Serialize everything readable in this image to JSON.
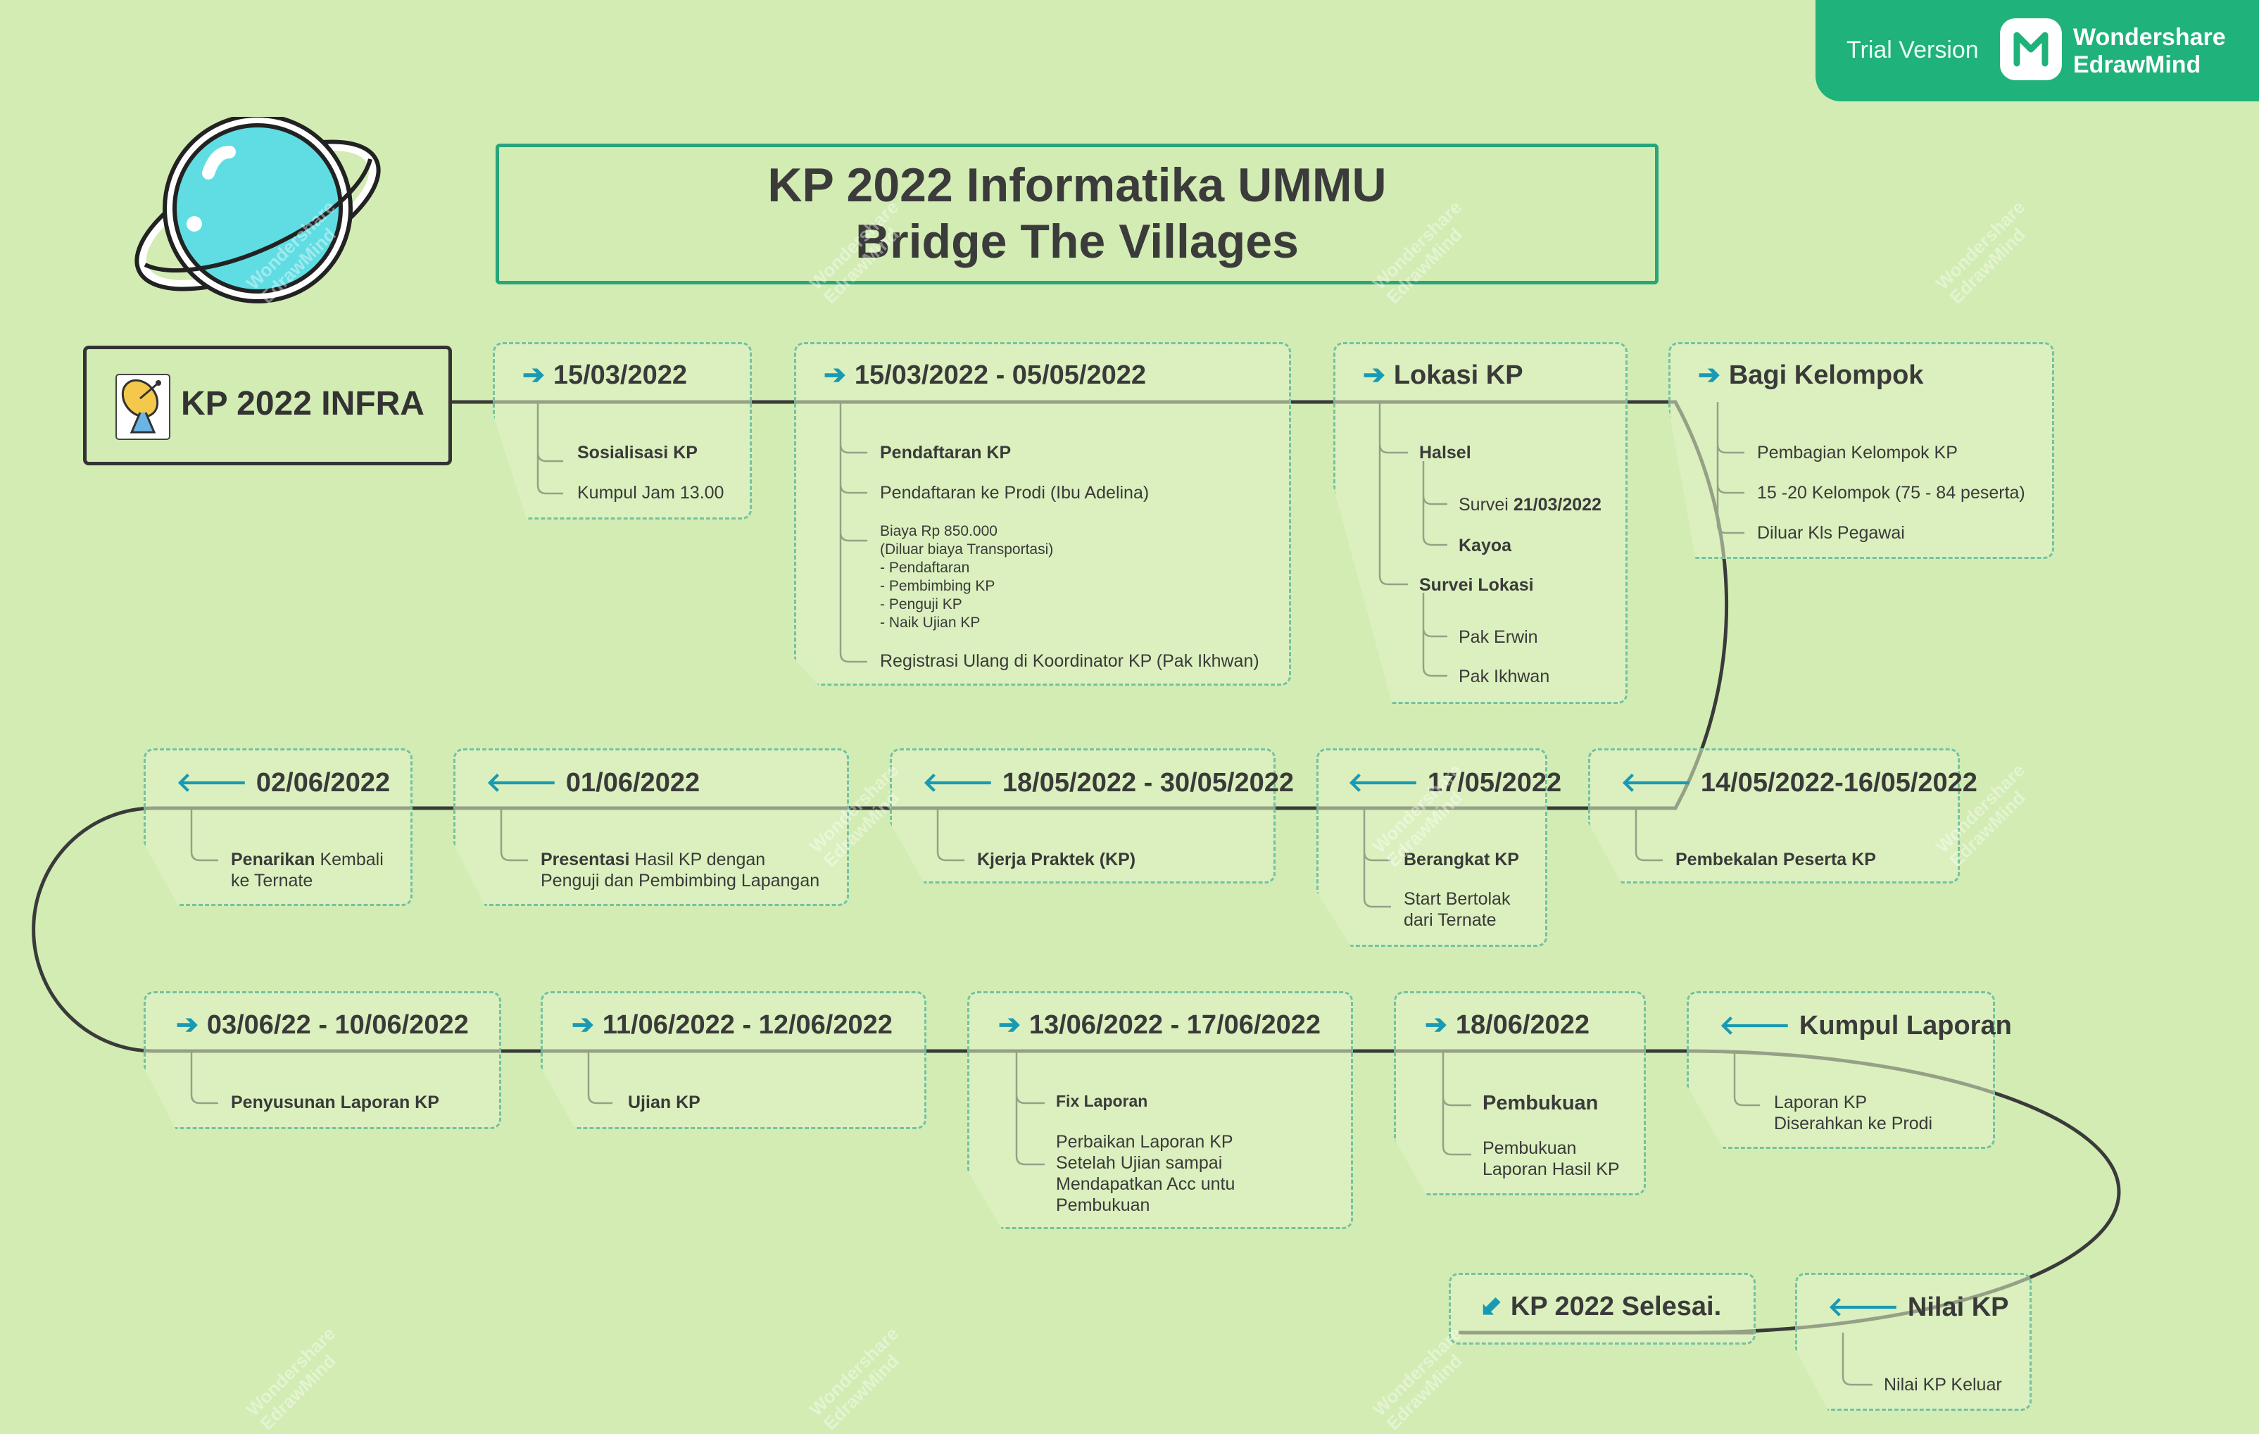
{
  "watermark": {
    "trial": "Trial Version",
    "brand_line1": "Wondershare",
    "brand_line2": "EdrawMind"
  },
  "title": {
    "line1": "KP 2022 Informatika UMMU",
    "line2": "Bridge The Villages"
  },
  "root": {
    "label": "KP 2022 INFRA"
  },
  "colors": {
    "background": "#d2ecb3",
    "accent": "#1fb27a",
    "arrow": "#1a9ab2",
    "card_border": "#74c2a0",
    "line": "#3a3a3a"
  },
  "topics": [
    {
      "arrow": "➔",
      "title": "15/03/2022",
      "items": [
        {
          "text": "Sosialisasi KP"
        },
        {
          "text": "Kumpul Jam 13.00"
        }
      ]
    },
    {
      "arrow": "➔",
      "title": "15/03/2022 - 05/05/2022",
      "items": [
        {
          "text": "Pendaftaran KP"
        },
        {
          "text": "Pendaftaran ke Prodi (Ibu Adelina)"
        },
        {
          "lines": [
            "Biaya Rp 850.000",
            "(Diluar biaya Transportasi)",
            "- Pendaftaran",
            "- Pembimbing KP",
            "- Penguji KP",
            "- Naik Ujian KP"
          ]
        },
        {
          "text": "Registrasi Ulang di Koordinator KP (Pak Ikhwan)"
        }
      ]
    },
    {
      "arrow": "➔",
      "title": "Lokasi KP",
      "items": [
        {
          "text": "Halsel"
        },
        {
          "pre": "Survei ",
          "bold": "21/03/2022"
        },
        {
          "text": "Kayoa"
        },
        {
          "text": "Survei Lokasi"
        },
        {
          "text": "Pak Erwin"
        },
        {
          "text": "Pak Ikhwan"
        }
      ]
    },
    {
      "arrow": "➔",
      "title": "Bagi Kelompok",
      "items": [
        {
          "text": "Pembagian Kelompok KP"
        },
        {
          "text": "15 -20 Kelompok (75 - 84 peserta)"
        },
        {
          "text": "Diluar Kls Pegawai"
        }
      ]
    },
    {
      "arrow": "🡐",
      "title": "14/05/2022-16/05/2022",
      "items": [
        {
          "text": "Pembekalan Peserta KP"
        }
      ]
    },
    {
      "arrow": "🡐",
      "title": "17/05/2022",
      "items": [
        {
          "text": "Berangkat KP"
        },
        {
          "lines": [
            "Start Bertolak",
            "dari Ternate"
          ]
        }
      ]
    },
    {
      "arrow": "🡐",
      "title": "18/05/2022 - 30/05/2022",
      "items": [
        {
          "text": "Kjerja Praktek (KP)"
        }
      ]
    },
    {
      "arrow": "🡐",
      "title": "01/06/2022",
      "items": [
        {
          "bold": "Presentasi",
          "rest": " Hasil KP dengan",
          "line2": "Penguji dan Pembimbing Lapangan"
        }
      ]
    },
    {
      "arrow": "🡐",
      "title": "02/06/2022",
      "items": [
        {
          "bold": "Penarikan",
          "rest": " Kembali",
          "line2": "ke Ternate"
        }
      ]
    },
    {
      "arrow": "➔",
      "title": "03/06/22 - 10/06/2022",
      "items": [
        {
          "text": "Penyusunan Laporan KP"
        }
      ]
    },
    {
      "arrow": "➔",
      "title": "11/06/2022 - 12/06/2022",
      "items": [
        {
          "text": "Ujian KP"
        }
      ]
    },
    {
      "arrow": "➔",
      "title": "13/06/2022 - 17/06/2022",
      "items": [
        {
          "text": "Fix Laporan"
        },
        {
          "lines": [
            "Perbaikan Laporan KP",
            "Setelah Ujian sampai",
            "Mendapatkan Acc untu",
            "Pembukuan"
          ]
        }
      ]
    },
    {
      "arrow": "➔",
      "title": "18/06/2022",
      "items": [
        {
          "text": "Pembukuan"
        },
        {
          "lines": [
            "Pembukuan",
            "Laporan Hasil KP"
          ]
        }
      ]
    },
    {
      "arrow": "🡐",
      "title": "Kumpul Laporan",
      "items": [
        {
          "lines": [
            "Laporan KP",
            "Diserahkan ke Prodi"
          ]
        }
      ]
    },
    {
      "arrow": "🡐",
      "title": "Nilai KP",
      "items": [
        {
          "text": "Nilai KP Keluar"
        }
      ]
    },
    {
      "arrow": "⬋",
      "title": "KP 2022 Selesai.",
      "items": []
    }
  ]
}
